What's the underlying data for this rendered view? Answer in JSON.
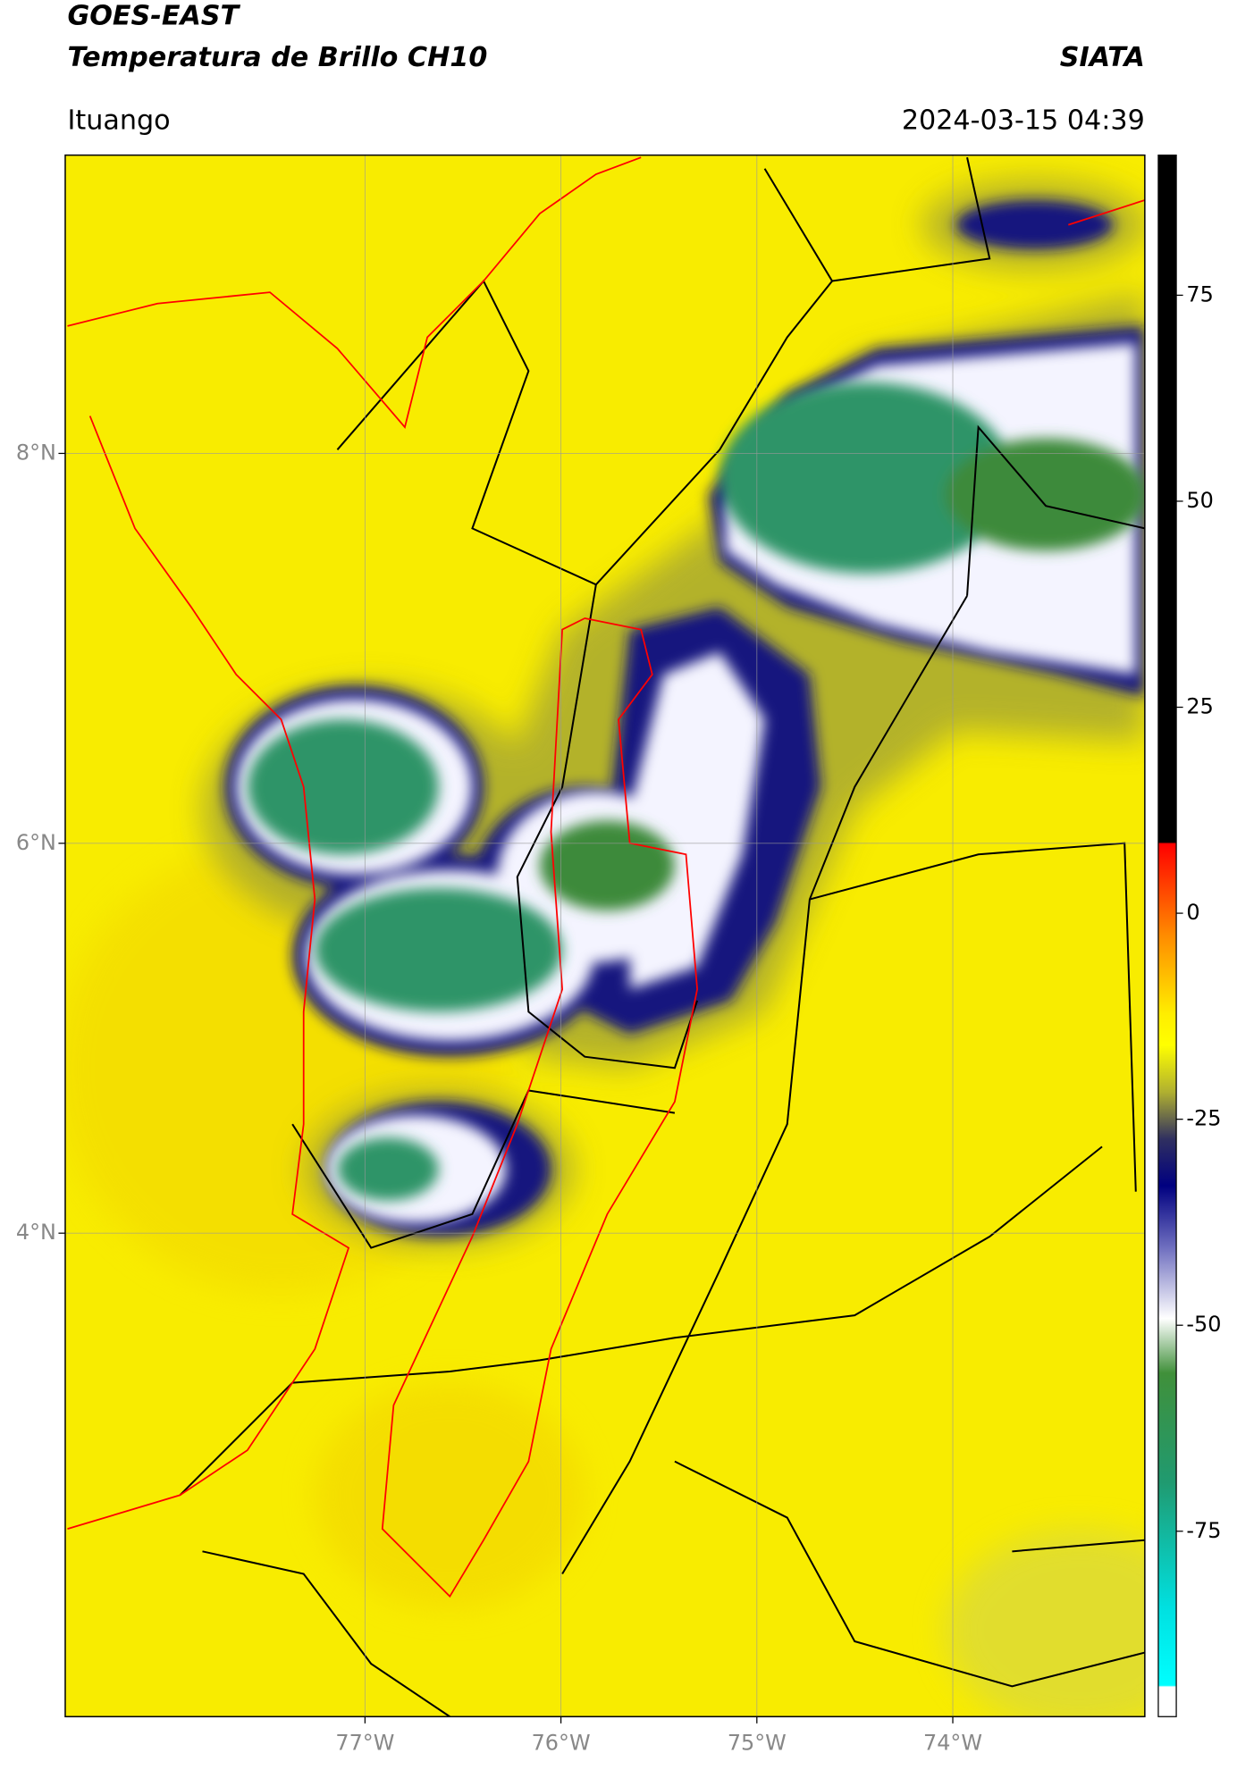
{
  "header": {
    "title_line1": "GOES-EAST",
    "title_line2": "Temperatura de Brillo CH10",
    "organization": "SIATA",
    "location": "Ituango",
    "datetime": "2024-03-15 04:39"
  },
  "map": {
    "xlim": [
      -78.53,
      -73.02
    ],
    "ylim": [
      1.52,
      9.53
    ],
    "xticks": [
      {
        "value": -77,
        "label": "77°W"
      },
      {
        "value": -76,
        "label": "76°W"
      },
      {
        "value": -75,
        "label": "75°W"
      },
      {
        "value": -74,
        "label": "74°W"
      }
    ],
    "yticks": [
      {
        "value": 8,
        "label": "8°N"
      },
      {
        "value": 6,
        "label": "6°N"
      },
      {
        "value": 4,
        "label": "4°N"
      }
    ],
    "grid": true
  },
  "colorbar": {
    "clim": [
      -97.5,
      92
    ],
    "ticks": [
      75,
      50,
      25,
      0,
      -25,
      -50,
      -75
    ]
  }
}
